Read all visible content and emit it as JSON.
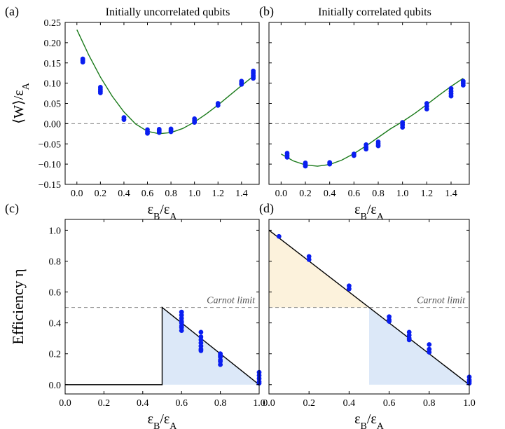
{
  "chart_data": [
    {
      "type": "scatter",
      "panel_label": "(a)",
      "title": "Initially uncorrelated qubits",
      "xlabel": "εB/εA",
      "ylabel": "⟨W⟩/εA",
      "xlim": [
        -0.1,
        1.55
      ],
      "ylim": [
        -0.15,
        0.25
      ],
      "xticks": [
        0.0,
        0.2,
        0.4,
        0.6,
        0.8,
        1.0,
        1.2,
        1.4
      ],
      "xtick_labels": [
        "0.0",
        "0.2",
        "0.4",
        "0.6",
        "0.8",
        "1.0",
        "1.2",
        "1.4"
      ],
      "yticks": [
        -0.15,
        -0.1,
        -0.05,
        0.0,
        0.05,
        0.1,
        0.15,
        0.2,
        0.25
      ],
      "ytick_labels": [
        "−0.15",
        "−0.10",
        "−0.05",
        "0.00",
        "0.05",
        "0.10",
        "0.15",
        "0.20",
        "0.25"
      ],
      "reference_line_y": 0,
      "theory_curve": {
        "color": "#1a7a1a",
        "x": [
          0.0,
          0.1,
          0.2,
          0.3,
          0.4,
          0.5,
          0.6,
          0.7,
          0.8,
          0.9,
          1.0,
          1.1,
          1.2,
          1.3,
          1.4,
          1.5
        ],
        "y": [
          0.232,
          0.17,
          0.115,
          0.068,
          0.029,
          -0.001,
          -0.019,
          -0.025,
          -0.022,
          -0.012,
          0.004,
          0.024,
          0.046,
          0.07,
          0.094,
          0.117
        ]
      },
      "points": {
        "color": "#0a1ef0",
        "x": [
          0.05,
          0.05,
          0.05,
          0.2,
          0.2,
          0.2,
          0.2,
          0.4,
          0.4,
          0.6,
          0.6,
          0.6,
          0.7,
          0.7,
          0.7,
          0.8,
          0.8,
          0.8,
          1.0,
          1.0,
          1.0,
          1.2,
          1.2,
          1.4,
          1.4,
          1.4,
          1.5,
          1.5,
          1.5,
          1.5,
          1.5
        ],
        "y": [
          0.16,
          0.156,
          0.152,
          0.09,
          0.085,
          0.08,
          0.076,
          0.015,
          0.01,
          -0.015,
          -0.02,
          -0.024,
          -0.014,
          -0.018,
          -0.022,
          -0.013,
          -0.017,
          -0.02,
          0.012,
          0.007,
          0.003,
          0.05,
          0.045,
          0.105,
          0.1,
          0.097,
          0.13,
          0.125,
          0.12,
          0.116,
          0.112
        ]
      }
    },
    {
      "type": "scatter",
      "panel_label": "(b)",
      "title": "Initially correlated qubits",
      "xlabel": "εB/εA",
      "ylabel": "",
      "xlim": [
        -0.1,
        1.55
      ],
      "ylim": [
        -0.15,
        0.25
      ],
      "xticks": [
        0.0,
        0.2,
        0.4,
        0.6,
        0.8,
        1.0,
        1.2,
        1.4
      ],
      "xtick_labels": [
        "0.0",
        "0.2",
        "0.4",
        "0.6",
        "0.8",
        "1.0",
        "1.2",
        "1.4"
      ],
      "yticks": [
        -0.15,
        -0.1,
        -0.05,
        0.0,
        0.05,
        0.1,
        0.15,
        0.2,
        0.25
      ],
      "reference_line_y": 0,
      "theory_curve": {
        "color": "#1a7a1a",
        "x": [
          0.0,
          0.1,
          0.2,
          0.3,
          0.4,
          0.5,
          0.6,
          0.7,
          0.8,
          0.9,
          1.0,
          1.1,
          1.2,
          1.3,
          1.4,
          1.5
        ],
        "y": [
          -0.075,
          -0.092,
          -0.102,
          -0.105,
          -0.101,
          -0.09,
          -0.074,
          -0.055,
          -0.034,
          -0.013,
          0.005,
          0.025,
          0.047,
          0.07,
          0.092,
          0.112
        ]
      },
      "points": {
        "color": "#0a1ef0",
        "x": [
          0.05,
          0.05,
          0.05,
          0.2,
          0.2,
          0.2,
          0.4,
          0.4,
          0.6,
          0.6,
          0.7,
          0.7,
          0.7,
          0.8,
          0.8,
          0.8,
          1.0,
          1.0,
          1.0,
          1.2,
          1.2,
          1.2,
          1.4,
          1.4,
          1.4,
          1.4,
          1.5,
          1.5,
          1.5
        ],
        "y": [
          -0.073,
          -0.078,
          -0.083,
          -0.097,
          -0.101,
          -0.105,
          -0.096,
          -0.1,
          -0.075,
          -0.079,
          -0.052,
          -0.058,
          -0.063,
          -0.045,
          -0.05,
          -0.055,
          0.003,
          -0.003,
          -0.009,
          0.05,
          0.043,
          0.036,
          0.087,
          0.08,
          0.074,
          0.068,
          0.105,
          0.1,
          0.095
        ]
      }
    },
    {
      "type": "line",
      "panel_label": "(c)",
      "xlabel": "εB/εA",
      "ylabel": "Efficiency η",
      "xlim": [
        0.0,
        1.0
      ],
      "ylim": [
        -0.06,
        1.07
      ],
      "xticks": [
        0.0,
        0.2,
        0.4,
        0.6,
        0.8,
        1.0
      ],
      "xtick_labels": [
        "0.0",
        "0.2",
        "0.4",
        "0.6",
        "0.8",
        "1.0"
      ],
      "yticks": [
        0.0,
        0.2,
        0.4,
        0.6,
        0.8,
        1.0
      ],
      "ytick_labels": [
        "0.0",
        "0.2",
        "0.4",
        "0.6",
        "0.8",
        "1.0"
      ],
      "carnot_limit": 0.5,
      "carnot_label": "Carnot limit",
      "theory_line": {
        "color": "#000000",
        "x": [
          0.0,
          0.5,
          0.5,
          1.0
        ],
        "y": [
          0.0,
          0.0,
          0.5,
          0.0
        ]
      },
      "shaded_region": {
        "color": "#dce8f8",
        "x": [
          0.5,
          0.5,
          1.0
        ],
        "y": [
          0.0,
          0.5,
          0.0
        ]
      },
      "points": {
        "color": "#0a1ef0",
        "x": [
          0.6,
          0.6,
          0.6,
          0.6,
          0.6,
          0.6,
          0.6,
          0.6,
          0.7,
          0.7,
          0.7,
          0.7,
          0.7,
          0.7,
          0.7,
          0.8,
          0.8,
          0.8,
          0.8,
          0.8,
          0.8,
          1.0,
          1.0,
          1.0,
          1.0,
          1.0
        ],
        "y": [
          0.47,
          0.45,
          0.43,
          0.41,
          0.4,
          0.38,
          0.37,
          0.35,
          0.34,
          0.31,
          0.29,
          0.27,
          0.25,
          0.23,
          0.22,
          0.2,
          0.19,
          0.18,
          0.16,
          0.15,
          0.13,
          0.08,
          0.06,
          0.04,
          0.02,
          0.01
        ]
      }
    },
    {
      "type": "line",
      "panel_label": "(d)",
      "xlabel": "εB/εA",
      "ylabel": "",
      "xlim": [
        0.0,
        1.0
      ],
      "ylim": [
        -0.06,
        1.07
      ],
      "xticks": [
        0.0,
        0.2,
        0.4,
        0.6,
        0.8,
        1.0
      ],
      "xtick_labels": [
        "0.0",
        "0.2",
        "0.4",
        "0.6",
        "0.8",
        "1.0"
      ],
      "yticks": [
        0.0,
        0.2,
        0.4,
        0.6,
        0.8,
        1.0
      ],
      "carnot_limit": 0.5,
      "carnot_label": "Carnot limit",
      "theory_line": {
        "color": "#000000",
        "x": [
          0.0,
          1.0
        ],
        "y": [
          1.0,
          0.0
        ]
      },
      "shaded_region_above": {
        "color": "#fcf2dc",
        "x": [
          0.0,
          0.0,
          0.5
        ],
        "y": [
          0.5,
          1.0,
          0.5
        ]
      },
      "shaded_region_below": {
        "color": "#dce8f8",
        "x": [
          0.5,
          0.5,
          1.0
        ],
        "y": [
          0.0,
          0.5,
          0.0
        ]
      },
      "points": {
        "color": "#0a1ef0",
        "x": [
          0.05,
          0.2,
          0.2,
          0.4,
          0.4,
          0.6,
          0.6,
          0.6,
          0.7,
          0.7,
          0.7,
          0.7,
          0.8,
          0.8,
          0.8,
          1.0,
          1.0,
          1.0,
          1.0
        ],
        "y": [
          0.96,
          0.83,
          0.81,
          0.64,
          0.62,
          0.44,
          0.42,
          0.41,
          0.34,
          0.32,
          0.3,
          0.29,
          0.26,
          0.23,
          0.21,
          0.05,
          0.03,
          0.02,
          0.01
        ]
      }
    }
  ]
}
